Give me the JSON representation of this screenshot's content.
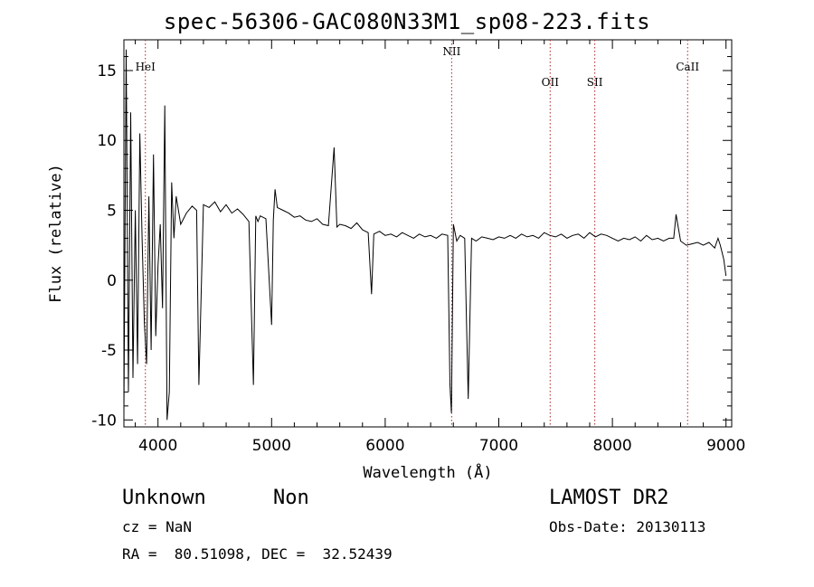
{
  "title": "spec-56306-GAC080N33M1_sp08-223.fits",
  "info": {
    "class": "Unknown",
    "subclass": "Non",
    "survey": "LAMOST DR2",
    "cz": "cz = NaN",
    "obs_date": "Obs-Date: 20130113",
    "coords": "RA =  80.51098, DEC =  32.52439"
  },
  "chart_data": {
    "type": "line",
    "xlabel": "Wavelength (Å)",
    "ylabel": "Flux (relative)",
    "xlim": [
      3700,
      9050
    ],
    "ylim": [
      -10.5,
      17.2
    ],
    "xticks": [
      4000,
      5000,
      6000,
      7000,
      8000,
      9000
    ],
    "yticks": [
      -10,
      -5,
      0,
      5,
      10,
      15
    ],
    "line_color": "#000000",
    "marker_color": "#b22222",
    "lines": [
      {
        "label": "HeI",
        "x": 3889
      },
      {
        "label": "NII",
        "x": 6585
      },
      {
        "label": "OII",
        "x": 7452
      },
      {
        "label": "SII",
        "x": 7845
      },
      {
        "label": "CaII",
        "x": 8662
      }
    ],
    "series": [
      {
        "x": [
          3700,
          3720,
          3740,
          3760,
          3780,
          3800,
          3820,
          3840,
          3860,
          3880,
          3900,
          3920,
          3940,
          3960,
          3980,
          4000,
          4020,
          4040,
          4060,
          4080,
          4100,
          4120,
          4140,
          4160,
          4180,
          4200,
          4250,
          4300,
          4340,
          4360,
          4400,
          4450,
          4500,
          4550,
          4600,
          4650,
          4700,
          4750,
          4800,
          4840,
          4861,
          4880,
          4900,
          4950,
          5000,
          5015,
          5030,
          5050,
          5100,
          5150,
          5200,
          5250,
          5300,
          5350,
          5400,
          5450,
          5500,
          5550,
          5575,
          5600,
          5650,
          5700,
          5750,
          5800,
          5850,
          5880,
          5900,
          5950,
          6000,
          6050,
          6100,
          6150,
          6200,
          6250,
          6300,
          6350,
          6400,
          6450,
          6500,
          6550,
          6570,
          6583,
          6600,
          6630,
          6660,
          6700,
          6716,
          6731,
          6760,
          6800,
          6850,
          6900,
          6950,
          7000,
          7050,
          7100,
          7150,
          7200,
          7250,
          7300,
          7350,
          7400,
          7450,
          7500,
          7550,
          7600,
          7650,
          7700,
          7750,
          7800,
          7850,
          7900,
          7950,
          8000,
          8050,
          8100,
          8150,
          8200,
          8250,
          8300,
          8350,
          8400,
          8450,
          8500,
          8540,
          8560,
          8600,
          8650,
          8700,
          8750,
          8800,
          8850,
          8900,
          8930,
          8950,
          8980,
          9000
        ],
        "y": [
          -9.5,
          16.5,
          -8,
          12,
          -7,
          5,
          -6,
          10.5,
          3,
          -3,
          -6,
          6,
          -5,
          9,
          -4,
          1,
          4,
          -2,
          12.5,
          -10,
          -8,
          7,
          3,
          6,
          5,
          4,
          4.8,
          5.3,
          5,
          -7.5,
          5.4,
          5.2,
          5.6,
          4.9,
          5.4,
          4.8,
          5.1,
          4.7,
          4.2,
          -7.5,
          4.6,
          4.2,
          4.6,
          4.4,
          -3.2,
          4.3,
          6.5,
          5.2,
          5,
          4.8,
          4.5,
          4.6,
          4.3,
          4.2,
          4.4,
          4,
          3.9,
          9.5,
          3.8,
          4,
          3.9,
          3.7,
          4.1,
          3.6,
          3.4,
          -1,
          3.3,
          3.5,
          3.2,
          3.3,
          3.1,
          3.4,
          3.2,
          3,
          3.3,
          3.1,
          3.2,
          3,
          3.3,
          3.2,
          -7.5,
          -9.5,
          4,
          2.8,
          3.2,
          3,
          -3,
          -8.5,
          3,
          2.8,
          3.1,
          3,
          2.9,
          3.1,
          3,
          3.2,
          3,
          3.3,
          3.1,
          3.2,
          3,
          3.4,
          3.2,
          3.1,
          3.3,
          3,
          3.2,
          3.3,
          3,
          3.4,
          3.1,
          3.3,
          3.2,
          3,
          2.8,
          3,
          2.9,
          3.1,
          2.8,
          3.2,
          2.9,
          3,
          2.8,
          3,
          3,
          4.7,
          2.8,
          2.5,
          2.6,
          2.7,
          2.5,
          2.7,
          2.3,
          3,
          2.5,
          1.5,
          0.3
        ]
      }
    ]
  }
}
